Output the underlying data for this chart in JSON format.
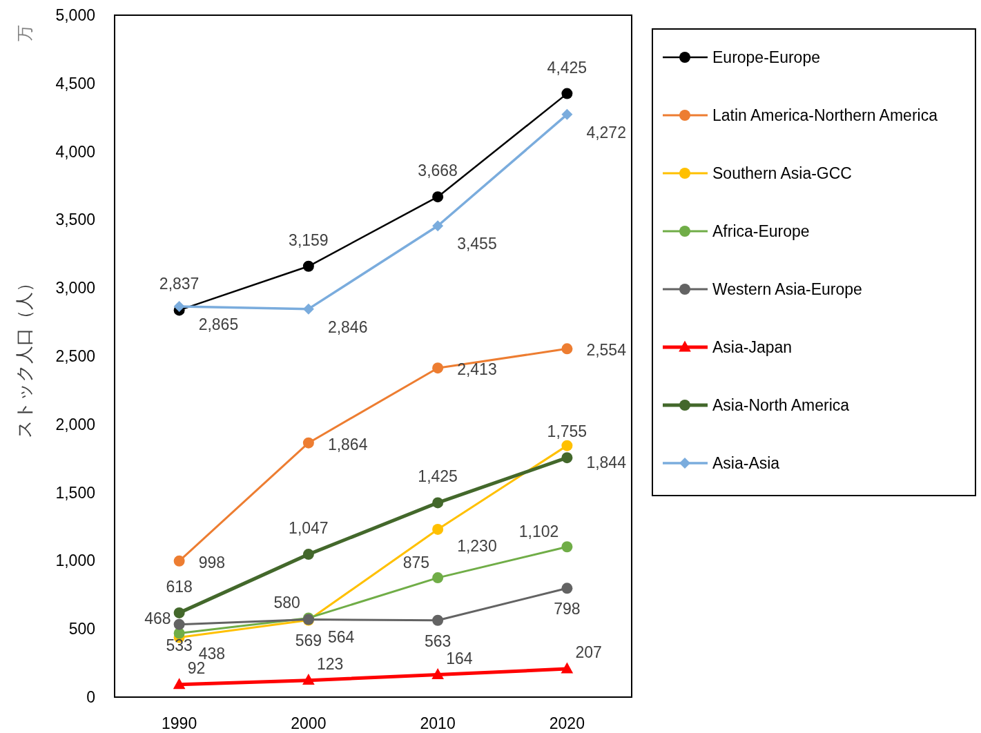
{
  "chart_data": {
    "type": "line",
    "ylabel": "ストック人口（人）",
    "annotations": [
      "万"
    ],
    "categories": [
      "1990",
      "2000",
      "2010",
      "2020"
    ],
    "ylim": [
      0,
      5000
    ],
    "yticks": [
      {
        "value": 0,
        "label": "0"
      },
      {
        "value": 500,
        "label": "500"
      },
      {
        "value": 1000,
        "label": "1,000"
      },
      {
        "value": 1500,
        "label": "1,500"
      },
      {
        "value": 2000,
        "label": "2,000"
      },
      {
        "value": 2500,
        "label": "2,500"
      },
      {
        "value": 3000,
        "label": "3,000"
      },
      {
        "value": 3500,
        "label": "3,500"
      },
      {
        "value": 4000,
        "label": "4,000"
      },
      {
        "value": 4500,
        "label": "4,500"
      },
      {
        "value": 5000,
        "label": "5,000"
      }
    ],
    "grid": false,
    "legend": "right",
    "line_style": "solid",
    "series": [
      {
        "name": "Europe-Europe",
        "color": "#000000",
        "marker": "circle",
        "values": [
          2837,
          3159,
          3668,
          4425
        ],
        "value_labels": [
          "2,837",
          "3,159",
          "3,668",
          "4,425"
        ]
      },
      {
        "name": "Latin America-Northern America",
        "color": "#ed7d31",
        "marker": "circle",
        "values": [
          998,
          1864,
          2413,
          2554
        ],
        "value_labels": [
          "998",
          "1,864",
          "2,413",
          "2,554"
        ]
      },
      {
        "name": "Southern Asia-GCC",
        "color": "#ffc000",
        "marker": "circle",
        "values": [
          438,
          564,
          1230,
          1844
        ],
        "value_labels": [
          "438",
          "564",
          "1,230",
          "1,844"
        ]
      },
      {
        "name": "Africa-Europe",
        "color": "#70ad47",
        "marker": "circle",
        "values": [
          468,
          580,
          875,
          1102
        ],
        "value_labels": [
          "468",
          "580",
          "875",
          "1,102"
        ]
      },
      {
        "name": "Western Asia-Europe",
        "color": "#636363",
        "marker": "circle",
        "values": [
          533,
          569,
          563,
          798
        ],
        "value_labels": [
          "533",
          "569",
          "563",
          "798"
        ]
      },
      {
        "name": "Asia-Japan",
        "color": "#ff0000",
        "marker": "triangle",
        "values": [
          92,
          123,
          164,
          207
        ],
        "value_labels": [
          "92",
          "123",
          "164",
          "207"
        ]
      },
      {
        "name": "Asia-North America",
        "color": "#43682b",
        "marker": "circle",
        "values": [
          618,
          1047,
          1425,
          1755
        ],
        "value_labels": [
          "618",
          "1,047",
          "1,425",
          "1,755"
        ]
      },
      {
        "name": "Asia-Asia",
        "color": "#7aacdd",
        "marker": "diamond",
        "values": [
          2865,
          2846,
          3455,
          4272
        ],
        "value_labels": [
          "2,865",
          "2,846",
          "3,455",
          "4,272"
        ]
      }
    ]
  }
}
